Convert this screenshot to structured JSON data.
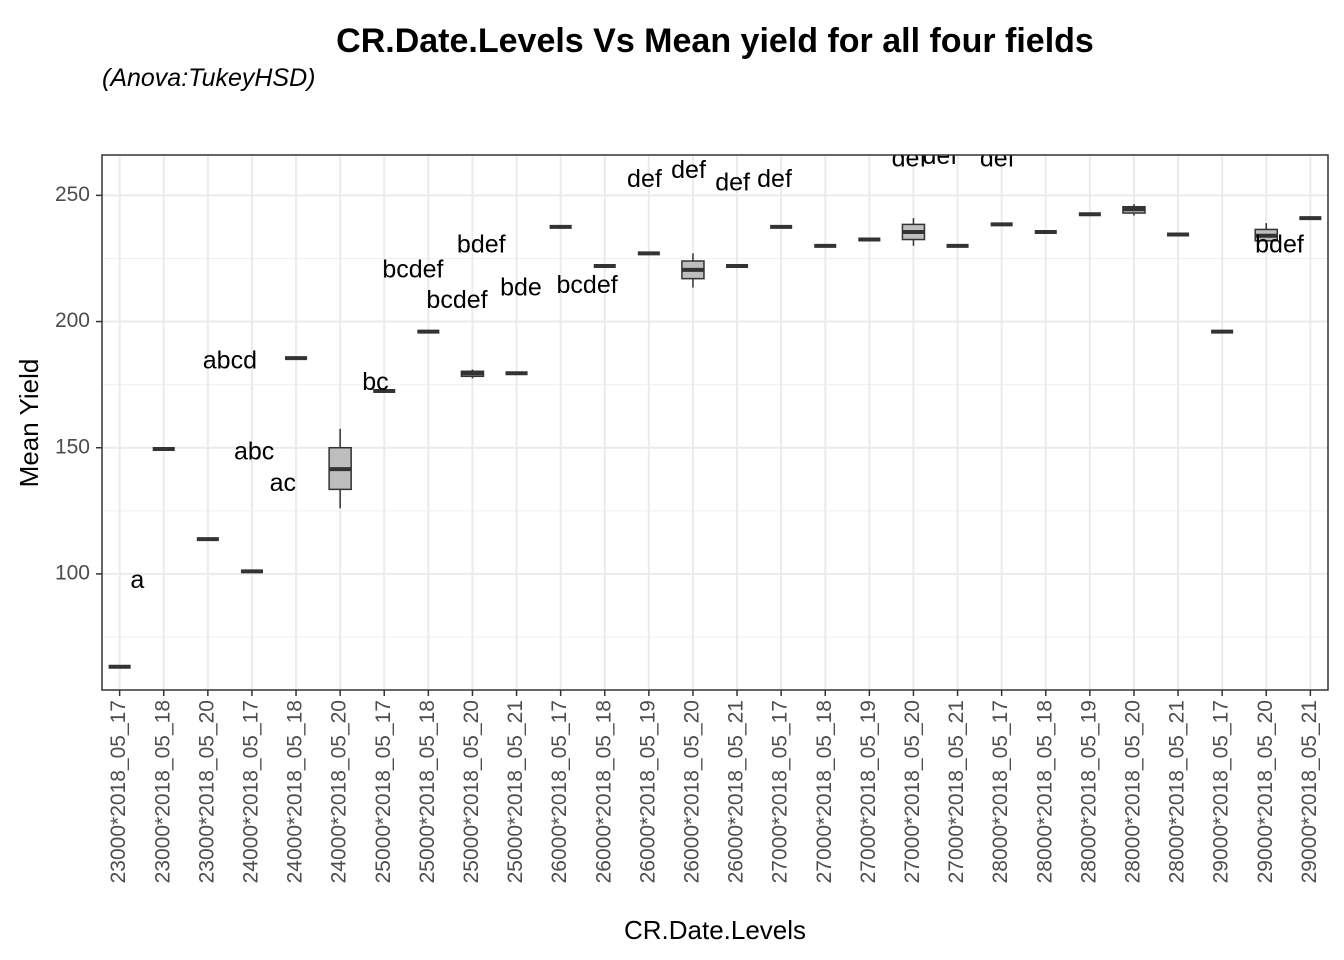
{
  "chart_data": {
    "type": "boxplot",
    "title": "CR.Date.Levels Vs Mean yield for all four fields",
    "subtitle": "(Anova:TukeyHSD)",
    "xlabel": "CR.Date.Levels",
    "ylabel": "Mean Yield",
    "ylim": [
      54,
      266
    ],
    "yticks": [
      100,
      150,
      200,
      250
    ],
    "grid": true,
    "box_fill": "#bebebe",
    "categories": [
      "23000*2018_05_17",
      "23000*2018_05_18",
      "23000*2018_05_20",
      "24000*2018_05_17",
      "24000*2018_05_18",
      "24000*2018_05_20",
      "25000*2018_05_17",
      "25000*2018_05_18",
      "25000*2018_05_20",
      "25000*2018_05_21",
      "26000*2018_05_17",
      "26000*2018_05_18",
      "26000*2018_05_19",
      "26000*2018_05_20",
      "26000*2018_05_21",
      "27000*2018_05_17",
      "27000*2018_05_18",
      "27000*2018_05_19",
      "27000*2018_05_20",
      "27000*2018_05_21",
      "28000*2018_05_17",
      "28000*2018_05_18",
      "28000*2018_05_19",
      "28000*2018_05_20",
      "28000*2018_05_21",
      "29000*2018_05_17",
      "29000*2018_05_20",
      "29000*2018_05_21"
    ],
    "boxes": [
      {
        "min": 63.2,
        "q1": 63.2,
        "median": 63.2,
        "q3": 63.2,
        "max": 63.2
      },
      {
        "min": 149.5,
        "q1": 149.5,
        "median": 149.5,
        "q3": 149.5,
        "max": 149.5
      },
      {
        "min": 113.8,
        "q1": 113.8,
        "median": 113.8,
        "q3": 113.8,
        "max": 113.8
      },
      {
        "min": 101,
        "q1": 101,
        "median": 101,
        "q3": 101,
        "max": 101
      },
      {
        "min": 185.5,
        "q1": 185.5,
        "median": 185.5,
        "q3": 185.5,
        "max": 185.5
      },
      {
        "min": 126,
        "q1": 133.5,
        "median": 141.5,
        "q3": 150,
        "max": 157.5
      },
      {
        "min": 172.5,
        "q1": 172.5,
        "median": 172.5,
        "q3": 172.5,
        "max": 172.5
      },
      {
        "min": 196,
        "q1": 196,
        "median": 196,
        "q3": 196,
        "max": 196
      },
      {
        "min": 177.5,
        "q1": 178.3,
        "median": 179.5,
        "q3": 180.3,
        "max": 181
      },
      {
        "min": 179.5,
        "q1": 179.5,
        "median": 179.5,
        "q3": 179.5,
        "max": 179.5
      },
      {
        "min": 237.5,
        "q1": 237.5,
        "median": 237.5,
        "q3": 237.5,
        "max": 237.5
      },
      {
        "min": 222,
        "q1": 222,
        "median": 222,
        "q3": 222,
        "max": 222
      },
      {
        "min": 227,
        "q1": 227,
        "median": 227,
        "q3": 227,
        "max": 227
      },
      {
        "min": 213.5,
        "q1": 217,
        "median": 220.5,
        "q3": 224,
        "max": 227
      },
      {
        "min": 222,
        "q1": 222,
        "median": 222,
        "q3": 222,
        "max": 222
      },
      {
        "min": 237.5,
        "q1": 237.5,
        "median": 237.5,
        "q3": 237.5,
        "max": 237.5
      },
      {
        "min": 230,
        "q1": 230,
        "median": 230,
        "q3": 230,
        "max": 230
      },
      {
        "min": 232.5,
        "q1": 232.5,
        "median": 232.5,
        "q3": 232.5,
        "max": 232.5
      },
      {
        "min": 230,
        "q1": 232.5,
        "median": 235.5,
        "q3": 238.5,
        "max": 241
      },
      {
        "min": 230,
        "q1": 230,
        "median": 230,
        "q3": 230,
        "max": 230
      },
      {
        "min": 238.5,
        "q1": 238.5,
        "median": 238.5,
        "q3": 238.5,
        "max": 238.5
      },
      {
        "min": 235.5,
        "q1": 235.5,
        "median": 235.5,
        "q3": 235.5,
        "max": 235.5
      },
      {
        "min": 242.5,
        "q1": 242.5,
        "median": 242.5,
        "q3": 242.5,
        "max": 242.5
      },
      {
        "min": 242,
        "q1": 243,
        "median": 244.5,
        "q3": 245.5,
        "max": 246.5
      },
      {
        "min": 234.5,
        "q1": 234.5,
        "median": 234.5,
        "q3": 234.5,
        "max": 234.5
      },
      {
        "min": 196,
        "q1": 196,
        "median": 196,
        "q3": 196,
        "max": 196
      },
      {
        "min": 231.5,
        "q1": 232,
        "median": 234,
        "q3": 236.5,
        "max": 239
      },
      {
        "min": 241,
        "q1": 241,
        "median": 241,
        "q3": 241,
        "max": 241
      }
    ],
    "annotations": [
      {
        "text": "a",
        "x": 1.4,
        "y": 97
      },
      {
        "text": "abc",
        "x": 4.05,
        "y": 148
      },
      {
        "text": "ac",
        "x": 4.7,
        "y": 135.5
      },
      {
        "text": "abcd",
        "x": 3.5,
        "y": 184
      },
      {
        "text": "bc",
        "x": 6.8,
        "y": 175.5
      },
      {
        "text": "bcdef",
        "x": 7.65,
        "y": 220
      },
      {
        "text": "bcdef",
        "x": 8.65,
        "y": 208
      },
      {
        "text": "bdef",
        "x": 9.2,
        "y": 230
      },
      {
        "text": "bde",
        "x": 10.1,
        "y": 213
      },
      {
        "text": "bcdef",
        "x": 11.6,
        "y": 214
      },
      {
        "text": "def",
        "x": 12.9,
        "y": 256
      },
      {
        "text": "def",
        "x": 13.9,
        "y": 259.5
      },
      {
        "text": "def",
        "x": 14.9,
        "y": 254.5
      },
      {
        "text": "def",
        "x": 15.85,
        "y": 256
      },
      {
        "text": "def",
        "x": 18.9,
        "y": 264
      },
      {
        "text": "def",
        "x": 19.6,
        "y": 265
      },
      {
        "text": "def",
        "x": 20.9,
        "y": 264
      },
      {
        "text": "bdef",
        "x": 27.3,
        "y": 230
      }
    ]
  }
}
